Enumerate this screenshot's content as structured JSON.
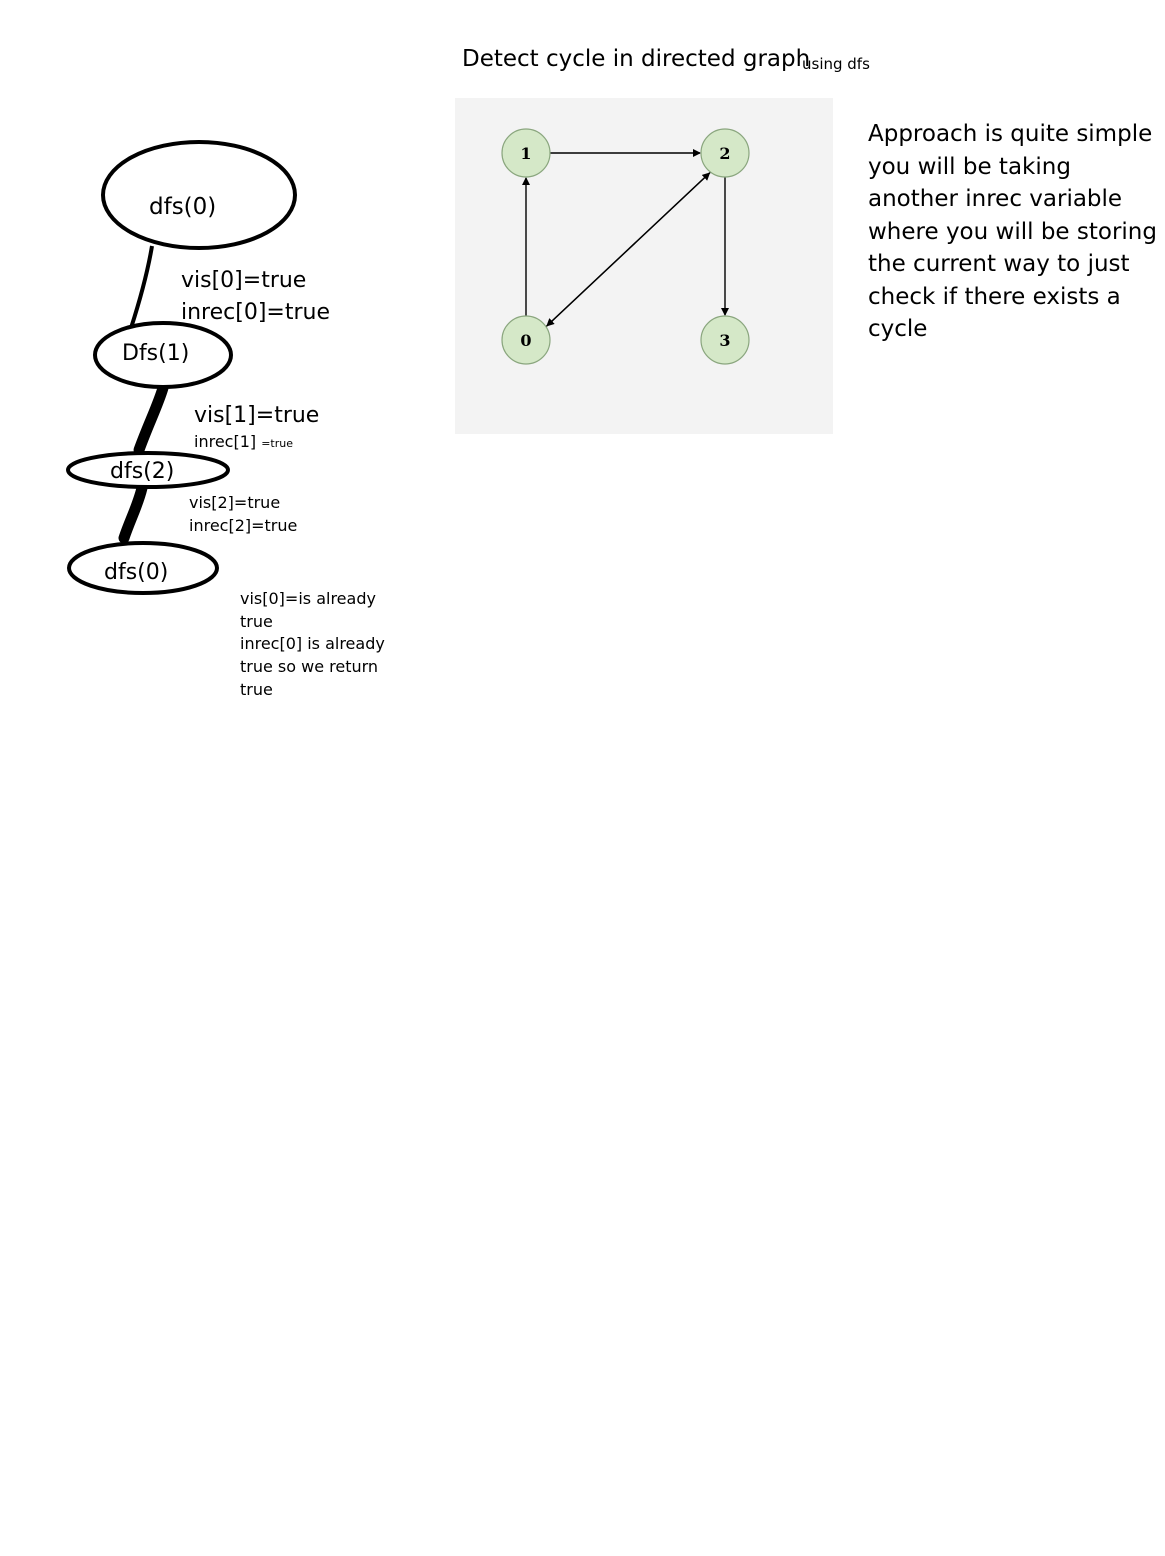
{
  "title": "Detect cycle in directed graph",
  "subtitle": "using dfs",
  "approach_text": "Approach is quite simple  you will be taking another inrec variable  where you will be storing the current way to just check if there exists a cycle",
  "graph": {
    "nodes": [
      {
        "id": "1",
        "label": "1"
      },
      {
        "id": "2",
        "label": "2"
      },
      {
        "id": "0",
        "label": "0"
      },
      {
        "id": "3",
        "label": "3"
      }
    ],
    "edges": [
      {
        "from": "1",
        "to": "2"
      },
      {
        "from": "0",
        "to": "1"
      },
      {
        "from": "0",
        "to": "2"
      },
      {
        "from": "2",
        "to": "0"
      },
      {
        "from": "2",
        "to": "3"
      }
    ],
    "node_fill": "#d5e8c8",
    "node_stroke": "#8aa67e",
    "panel_bg": "#f3f3f3"
  },
  "dfs_tree": {
    "nodes": [
      {
        "label": "dfs(0)"
      },
      {
        "label": "Dfs(1)"
      },
      {
        "label": "dfs(2)"
      },
      {
        "label": "dfs(0)"
      }
    ],
    "annotations": {
      "a1_line1": "vis[0]=true",
      "a1_line2": "inrec[0]=true",
      "a2_line1": "vis[1]=true",
      "a2_line2_main": "inrec[1] ",
      "a2_line2_small": "=true",
      "a3_line1": "vis[2]=true",
      "a3_line2": "inrec[2]=true",
      "a4_line1": "vis[0]=is already",
      "a4_line2": "true",
      "a4_line3": "inrec[0] is already",
      "a4_line4": "true so we return",
      "a4_line5": "true"
    }
  }
}
